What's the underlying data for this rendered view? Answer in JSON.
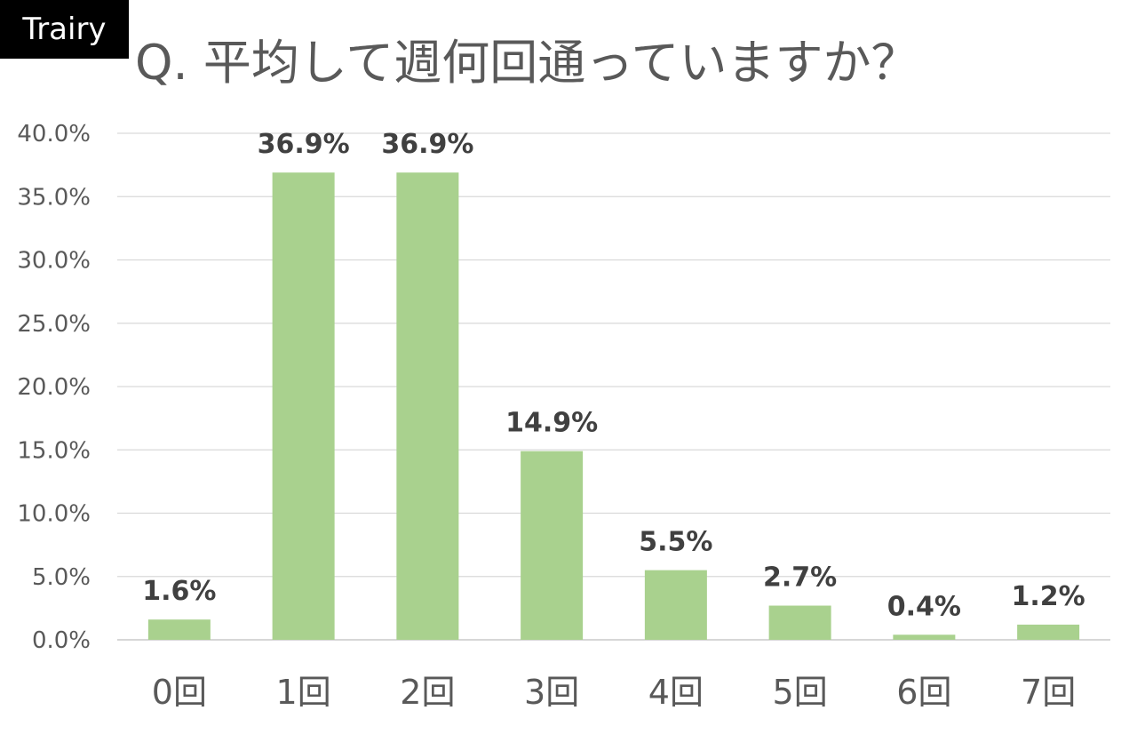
{
  "brand": {
    "label": "Trairy"
  },
  "chart_data": {
    "type": "bar",
    "title": "Q. 平均して週何回通っていますか？",
    "categories": [
      "0回",
      "1回",
      "2回",
      "3回",
      "4回",
      "5回",
      "6回",
      "7回"
    ],
    "values": [
      1.6,
      36.9,
      36.9,
      14.9,
      5.5,
      2.7,
      0.4,
      1.2
    ],
    "data_labels": [
      "1.6%",
      "36.9%",
      "36.9%",
      "14.9%",
      "5.5%",
      "2.7%",
      "0.4%",
      "1.2%"
    ],
    "y_ticks": [
      "0.0%",
      "5.0%",
      "10.0%",
      "15.0%",
      "20.0%",
      "25.0%",
      "30.0%",
      "35.0%",
      "40.0%"
    ],
    "ylim": [
      0,
      40
    ],
    "xlabel": "",
    "ylabel": "",
    "grid": true,
    "legend": "none",
    "bar_color": "#a9d18e"
  }
}
